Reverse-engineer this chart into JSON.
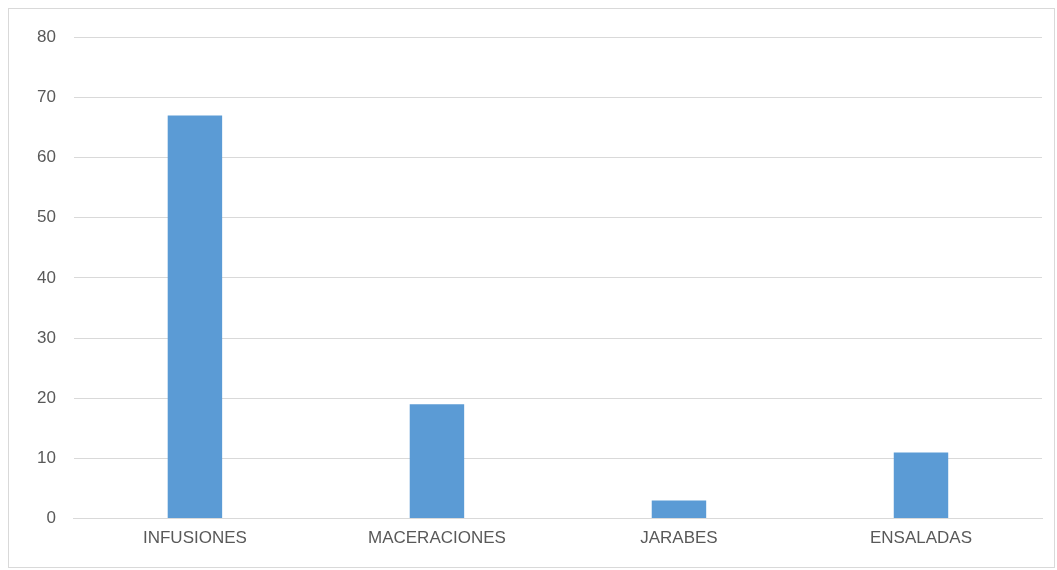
{
  "chart_data": {
    "type": "bar",
    "categories": [
      "INFUSIONES",
      "MACERACIONES",
      "JARABES",
      "ENSALADAS"
    ],
    "values": [
      67,
      19,
      3,
      11
    ],
    "color": "#5b9bd5",
    "ylim": [
      0,
      80
    ],
    "yticks": [
      0,
      10,
      20,
      30,
      40,
      50,
      60,
      70,
      80
    ],
    "grid": "y",
    "legend": false
  }
}
